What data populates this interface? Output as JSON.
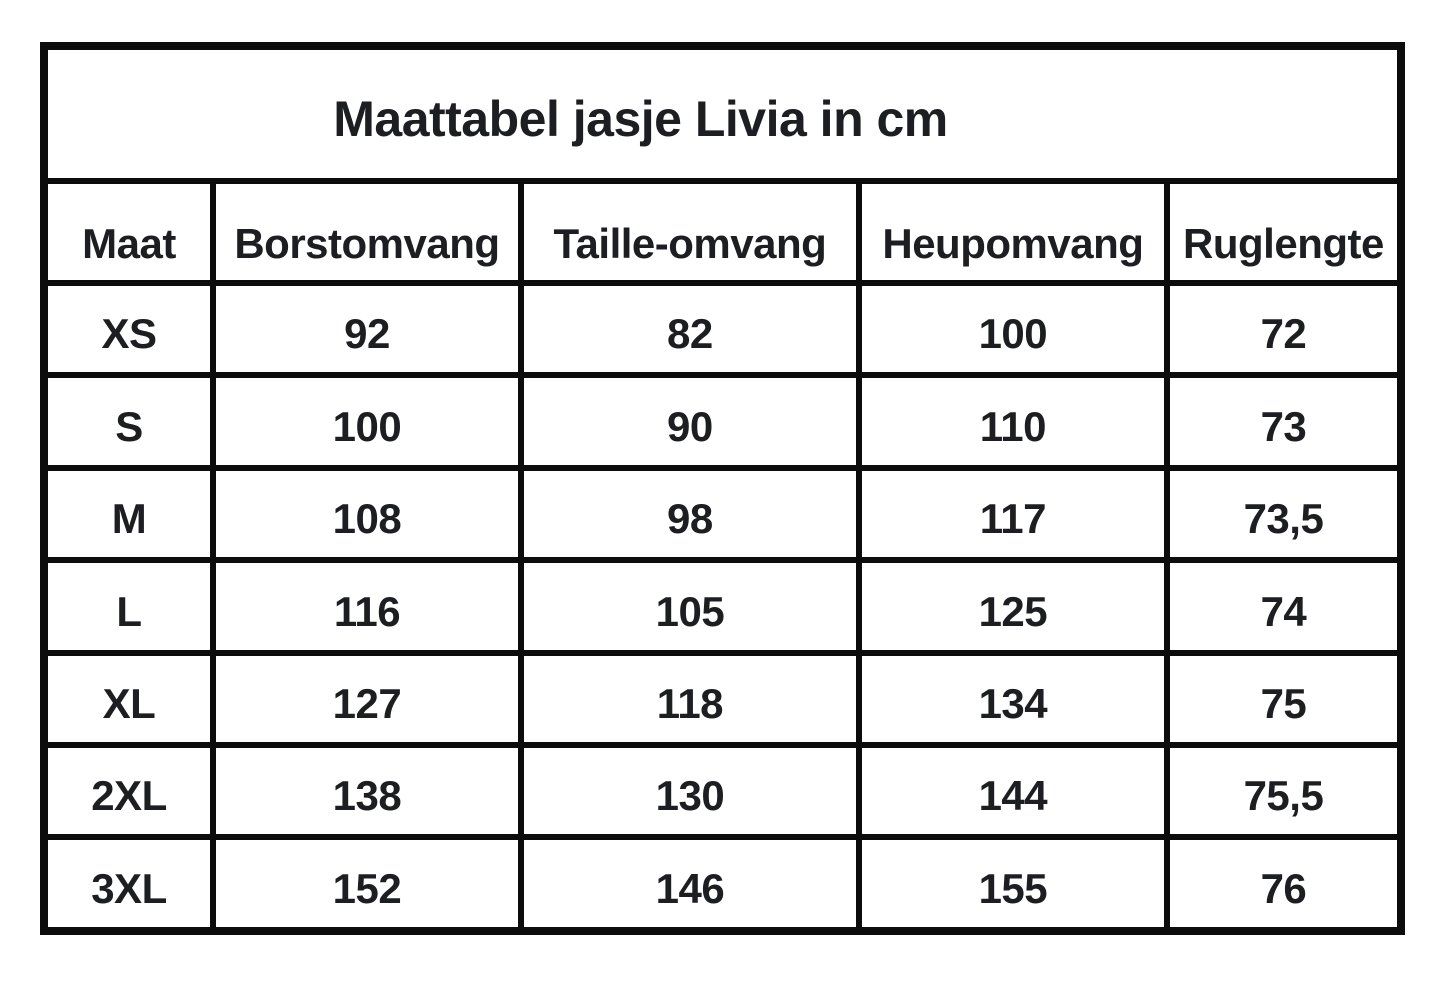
{
  "title": "Maattabel jasje Livia in cm",
  "columns": [
    "Maat",
    "Borstomvang",
    "Taille-omvang",
    "Heupomvang",
    "Ruglengte"
  ],
  "rows": [
    [
      "XS",
      "92",
      "82",
      "100",
      "72"
    ],
    [
      "S",
      "100",
      "90",
      "110",
      "73"
    ],
    [
      "M",
      "108",
      "98",
      "117",
      "73,5"
    ],
    [
      "L",
      "116",
      "105",
      "125",
      "74"
    ],
    [
      "XL",
      "127",
      "118",
      "134",
      "75"
    ],
    [
      "2XL",
      "138",
      "130",
      "144",
      "75,5"
    ],
    [
      "3XL",
      "152",
      "146",
      "155",
      "76"
    ]
  ],
  "colors": {
    "border": "#0c0c0c",
    "text": "#1d1e22",
    "background": "#ffffff"
  },
  "chart_data": {
    "type": "table",
    "title": "Maattabel jasje Livia in cm",
    "columns": [
      "Maat",
      "Borstomvang",
      "Taille-omvang",
      "Heupomvang",
      "Ruglengte"
    ],
    "rows": [
      [
        "XS",
        92,
        82,
        100,
        72
      ],
      [
        "S",
        100,
        90,
        110,
        73
      ],
      [
        "M",
        108,
        98,
        117,
        73.5
      ],
      [
        "L",
        116,
        105,
        125,
        74
      ],
      [
        "XL",
        127,
        118,
        134,
        75
      ],
      [
        "2XL",
        138,
        130,
        144,
        75.5
      ],
      [
        "3XL",
        152,
        146,
        155,
        76
      ]
    ],
    "units": "cm"
  }
}
